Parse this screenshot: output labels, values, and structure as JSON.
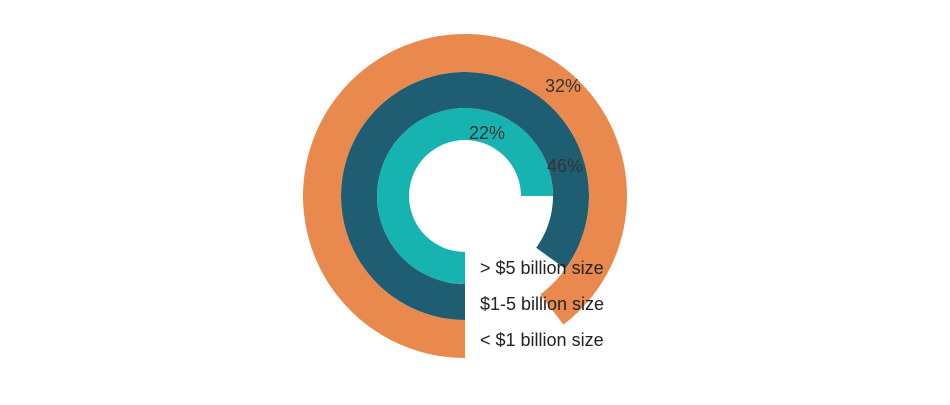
{
  "chart_data": {
    "type": "radial-bar",
    "title": "",
    "legend_placement": "labels beside bar starts",
    "series": [
      {
        "name": "> $5 billion size",
        "value": 22,
        "value_label": "22%",
        "color": "#17B3B0"
      },
      {
        "name": "$1-5 billion size",
        "value": 46,
        "value_label": "46%",
        "color": "#1F5D73"
      },
      {
        "name": "< $1 billion size",
        "value": 32,
        "value_label": "32%",
        "color": "#E9894D"
      }
    ]
  }
}
